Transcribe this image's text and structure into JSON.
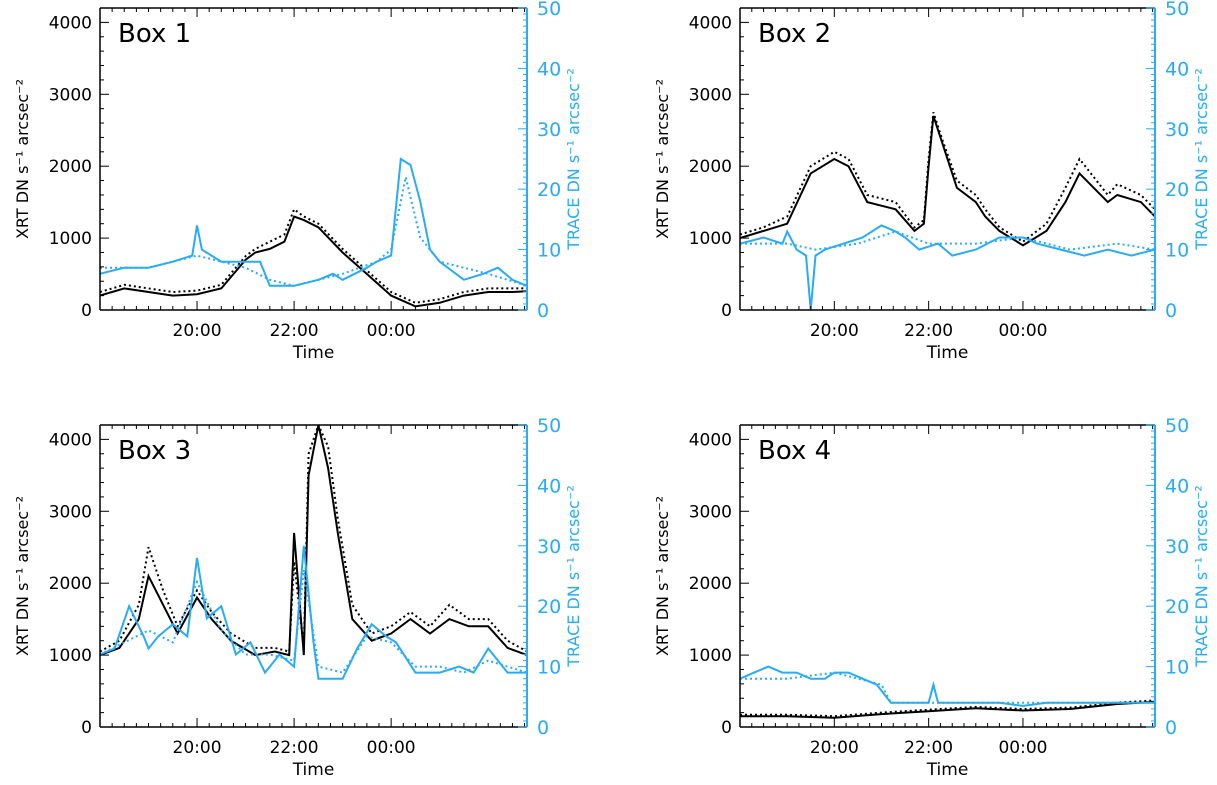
{
  "colors": {
    "xrt": "#000000",
    "trace": "#29abf5",
    "axis": "#000000",
    "background": "#ffffff"
  },
  "chart_data": [
    {
      "type": "line",
      "title": "Box 1",
      "xlabel": "Time",
      "ylabel_left": "XRT DN s⁻¹ arcsec⁻²",
      "ylabel_right": "TRACE DN s⁻¹ arcsec⁻²",
      "x_unit": "hours since 18:00 (axis shows clock time)",
      "xlim": [
        0,
        8.8
      ],
      "x_tick_values": [
        2,
        4,
        6
      ],
      "x_tick_labels": [
        "20:00",
        "22:00",
        "00:00"
      ],
      "ylim_left": [
        0,
        4200
      ],
      "ylim_right": [
        0,
        50
      ],
      "y_left_ticks": [
        0,
        1000,
        2000,
        3000,
        4000
      ],
      "y_right_ticks": [
        0,
        10,
        20,
        30,
        40,
        50
      ],
      "grid": false,
      "series": [
        {
          "name": "XRT",
          "axis": "left",
          "style": "solid",
          "color": "#000000",
          "x": [
            0,
            0.5,
            1,
            1.5,
            2,
            2.5,
            3.0,
            3.2,
            3.5,
            3.8,
            4.0,
            4.2,
            4.5,
            5.0,
            5.5,
            6.0,
            6.5,
            7.0,
            7.5,
            8.0,
            8.5,
            8.8
          ],
          "y": [
            200,
            300,
            250,
            200,
            220,
            300,
            700,
            800,
            850,
            950,
            1300,
            1250,
            1150,
            800,
            500,
            200,
            50,
            100,
            200,
            250,
            250,
            260
          ]
        },
        {
          "name": "XRT (dotted)",
          "axis": "left",
          "style": "dotted",
          "color": "#000000",
          "x": [
            0,
            0.5,
            1,
            1.5,
            2,
            2.5,
            3.0,
            3.2,
            3.5,
            3.8,
            4.0,
            4.2,
            4.5,
            5.0,
            5.5,
            6.0,
            6.5,
            7.0,
            7.5,
            8.0,
            8.5,
            8.8
          ],
          "y": [
            250,
            350,
            300,
            250,
            270,
            350,
            750,
            850,
            950,
            1050,
            1400,
            1300,
            1200,
            850,
            550,
            250,
            100,
            150,
            250,
            300,
            300,
            300
          ]
        },
        {
          "name": "TRACE",
          "axis": "right",
          "style": "solid",
          "color": "#29abf5",
          "x": [
            0,
            0.5,
            1.0,
            1.5,
            1.9,
            2.0,
            2.1,
            2.5,
            3.0,
            3.3,
            3.5,
            4.0,
            4.5,
            4.8,
            5.0,
            5.5,
            5.7,
            6.0,
            6.2,
            6.4,
            6.6,
            6.8,
            7.0,
            7.5,
            7.9,
            8.2,
            8.5,
            8.8
          ],
          "y": [
            6,
            7,
            7,
            8,
            9,
            14,
            10,
            8,
            8,
            8,
            4,
            4,
            5,
            6,
            5,
            7,
            8,
            9,
            25,
            24,
            18,
            10,
            8,
            5,
            6,
            7,
            5,
            4
          ]
        },
        {
          "name": "TRACE (dotted)",
          "axis": "right",
          "style": "dotted",
          "color": "#29abf5",
          "x": [
            0,
            1,
            2,
            2.5,
            3,
            3.5,
            4,
            5,
            5.7,
            6.0,
            6.3,
            6.6,
            7,
            8,
            8.8
          ],
          "y": [
            7,
            7,
            9,
            8,
            7,
            5,
            4,
            6,
            8,
            10,
            22,
            12,
            8,
            6,
            4
          ]
        }
      ]
    },
    {
      "type": "line",
      "title": "Box 2",
      "xlabel": "Time",
      "ylabel_left": "XRT DN s⁻¹ arcsec⁻²",
      "ylabel_right": "TRACE DN s⁻¹ arcsec⁻²",
      "x_unit": "hours since 18:00 (axis shows clock time)",
      "xlim": [
        0,
        8.8
      ],
      "x_tick_values": [
        2,
        4,
        6
      ],
      "x_tick_labels": [
        "20:00",
        "22:00",
        "00:00"
      ],
      "ylim_left": [
        0,
        4200
      ],
      "ylim_right": [
        0,
        50
      ],
      "y_left_ticks": [
        0,
        1000,
        2000,
        3000,
        4000
      ],
      "y_right_ticks": [
        0,
        10,
        20,
        30,
        40,
        50
      ],
      "grid": false,
      "series": [
        {
          "name": "XRT",
          "axis": "left",
          "style": "solid",
          "color": "#000000",
          "x": [
            0,
            0.5,
            1.0,
            1.5,
            2.0,
            2.3,
            2.7,
            3.3,
            3.7,
            3.9,
            4.0,
            4.1,
            4.3,
            4.6,
            5.0,
            5.2,
            5.5,
            6.0,
            6.5,
            6.9,
            7.2,
            7.5,
            7.8,
            8.0,
            8.5,
            8.8
          ],
          "y": [
            1000,
            1100,
            1200,
            1900,
            2100,
            2000,
            1500,
            1400,
            1100,
            1200,
            2000,
            2700,
            2300,
            1700,
            1500,
            1300,
            1100,
            900,
            1100,
            1500,
            1900,
            1700,
            1500,
            1600,
            1500,
            1300
          ]
        },
        {
          "name": "XRT (dotted)",
          "axis": "left",
          "style": "dotted",
          "color": "#000000",
          "x": [
            0,
            0.5,
            1.0,
            1.5,
            2.0,
            2.3,
            2.7,
            3.3,
            3.7,
            3.9,
            4.0,
            4.1,
            4.3,
            4.6,
            5.0,
            5.2,
            5.5,
            6.0,
            6.5,
            6.9,
            7.2,
            7.5,
            7.8,
            8.0,
            8.5,
            8.8
          ],
          "y": [
            1050,
            1150,
            1300,
            2000,
            2200,
            2100,
            1600,
            1500,
            1150,
            1250,
            2100,
            2750,
            2350,
            1800,
            1600,
            1400,
            1150,
            950,
            1200,
            1700,
            2100,
            1850,
            1600,
            1750,
            1600,
            1400
          ]
        },
        {
          "name": "TRACE",
          "axis": "right",
          "style": "solid",
          "color": "#29abf5",
          "x": [
            0,
            0.5,
            0.9,
            1.0,
            1.2,
            1.4,
            1.5,
            1.6,
            1.8,
            2.2,
            2.6,
            3.0,
            3.3,
            3.5,
            3.8,
            4.2,
            4.5,
            5.0,
            5.5,
            6.0,
            6.3,
            6.8,
            7.3,
            7.8,
            8.3,
            8.8
          ],
          "y": [
            11,
            12,
            11,
            13,
            10,
            9,
            0,
            9,
            10,
            11,
            12,
            14,
            13,
            12,
            10,
            11,
            9,
            10,
            12,
            12,
            11,
            10,
            9,
            10,
            9,
            10
          ]
        },
        {
          "name": "TRACE (dotted)",
          "axis": "right",
          "style": "dotted",
          "color": "#29abf5",
          "x": [
            0,
            1,
            1.6,
            2.5,
            3.3,
            4.0,
            5.0,
            6.0,
            7.0,
            8.0,
            8.8
          ],
          "y": [
            11,
            11,
            10,
            11,
            13,
            11,
            11,
            12,
            10,
            11,
            10
          ]
        }
      ]
    },
    {
      "type": "line",
      "title": "Box 3",
      "xlabel": "Time",
      "ylabel_left": "XRT DN s⁻¹ arcsec⁻²",
      "ylabel_right": "TRACE DN s⁻¹ arcsec⁻²",
      "x_unit": "hours since 18:00 (axis shows clock time)",
      "xlim": [
        0,
        8.8
      ],
      "x_tick_values": [
        2,
        4,
        6
      ],
      "x_tick_labels": [
        "20:00",
        "22:00",
        "00:00"
      ],
      "ylim_left": [
        0,
        4200
      ],
      "ylim_right": [
        0,
        50
      ],
      "y_left_ticks": [
        0,
        1000,
        2000,
        3000,
        4000
      ],
      "y_right_ticks": [
        0,
        10,
        20,
        30,
        40,
        50
      ],
      "grid": false,
      "series": [
        {
          "name": "XRT",
          "axis": "left",
          "style": "solid",
          "color": "#000000",
          "x": [
            0,
            0.4,
            0.8,
            1.0,
            1.3,
            1.6,
            2.0,
            2.3,
            2.7,
            3.2,
            3.6,
            3.9,
            4.0,
            4.2,
            4.3,
            4.5,
            4.7,
            4.9,
            5.2,
            5.6,
            6.0,
            6.4,
            6.8,
            7.2,
            7.6,
            8.0,
            8.4,
            8.8
          ],
          "y": [
            1000,
            1100,
            1500,
            2100,
            1700,
            1300,
            1800,
            1500,
            1200,
            1000,
            1050,
            1000,
            2700,
            1000,
            3500,
            4200,
            3600,
            2700,
            1500,
            1200,
            1300,
            1500,
            1300,
            1500,
            1400,
            1400,
            1100,
            1000
          ]
        },
        {
          "name": "XRT (dotted)",
          "axis": "left",
          "style": "dotted",
          "color": "#000000",
          "x": [
            0,
            0.4,
            0.8,
            1.0,
            1.3,
            1.6,
            2.0,
            2.3,
            2.7,
            3.2,
            3.6,
            3.9,
            4.0,
            4.2,
            4.3,
            4.5,
            4.7,
            4.9,
            5.2,
            5.6,
            6.0,
            6.4,
            6.8,
            7.2,
            7.6,
            8.0,
            8.4,
            8.8
          ],
          "y": [
            1050,
            1200,
            1700,
            2500,
            1900,
            1400,
            1900,
            1600,
            1300,
            1100,
            1100,
            1050,
            2300,
            1100,
            3800,
            4200,
            3900,
            2900,
            1700,
            1300,
            1400,
            1600,
            1400,
            1700,
            1500,
            1500,
            1200,
            1050
          ]
        },
        {
          "name": "TRACE",
          "axis": "right",
          "style": "solid",
          "color": "#29abf5",
          "x": [
            0,
            0.3,
            0.6,
            0.9,
            1.0,
            1.2,
            1.5,
            1.8,
            2.0,
            2.2,
            2.5,
            2.8,
            3.1,
            3.4,
            3.7,
            4.0,
            4.2,
            4.4,
            4.5,
            4.7,
            5.0,
            5.3,
            5.6,
            5.9,
            6.1,
            6.5,
            7.0,
            7.4,
            7.7,
            8.0,
            8.4,
            8.8
          ],
          "y": [
            12,
            13,
            20,
            15,
            13,
            15,
            17,
            15,
            28,
            18,
            20,
            12,
            14,
            9,
            12,
            10,
            30,
            14,
            8,
            8,
            8,
            13,
            17,
            15,
            14,
            9,
            9,
            10,
            9,
            13,
            9,
            9
          ]
        },
        {
          "name": "TRACE (dotted)",
          "axis": "right",
          "style": "dotted",
          "color": "#29abf5",
          "x": [
            0,
            0.5,
            1.0,
            1.5,
            2.0,
            2.5,
            3.0,
            3.5,
            4.0,
            4.2,
            4.5,
            5.0,
            5.5,
            6.0,
            6.5,
            7.0,
            7.5,
            8.0,
            8.8
          ],
          "y": [
            12,
            14,
            16,
            14,
            24,
            16,
            12,
            12,
            11,
            26,
            10,
            9,
            15,
            14,
            10,
            10,
            9,
            11,
            9
          ]
        }
      ]
    },
    {
      "type": "line",
      "title": "Box 4",
      "xlabel": "Time",
      "ylabel_left": "XRT DN s⁻¹ arcsec⁻²",
      "ylabel_right": "TRACE DN s⁻¹ arcsec⁻²",
      "x_unit": "hours since 18:00 (axis shows clock time)",
      "xlim": [
        0,
        8.8
      ],
      "x_tick_values": [
        2,
        4,
        6
      ],
      "x_tick_labels": [
        "20:00",
        "22:00",
        "00:00"
      ],
      "ylim_left": [
        0,
        4200
      ],
      "ylim_right": [
        0,
        50
      ],
      "y_left_ticks": [
        0,
        1000,
        2000,
        3000,
        4000
      ],
      "y_right_ticks": [
        0,
        10,
        20,
        30,
        40,
        50
      ],
      "grid": false,
      "series": [
        {
          "name": "XRT",
          "axis": "left",
          "style": "solid",
          "color": "#000000",
          "x": [
            0,
            1,
            2,
            3,
            4,
            5,
            6,
            7,
            8,
            8.8
          ],
          "y": [
            150,
            150,
            130,
            180,
            220,
            260,
            230,
            250,
            320,
            350
          ]
        },
        {
          "name": "XRT (dotted)",
          "axis": "left",
          "style": "dotted",
          "color": "#000000",
          "x": [
            0,
            1,
            2,
            3,
            4,
            5,
            6,
            7,
            8,
            8.8
          ],
          "y": [
            170,
            170,
            150,
            200,
            240,
            280,
            250,
            270,
            340,
            370
          ]
        },
        {
          "name": "TRACE",
          "axis": "right",
          "style": "solid",
          "color": "#29abf5",
          "x": [
            0,
            0.3,
            0.6,
            0.9,
            1.2,
            1.5,
            1.8,
            2.0,
            2.3,
            2.6,
            2.9,
            3.2,
            3.6,
            4.0,
            4.1,
            4.2,
            4.5,
            5.0,
            5.5,
            6.0,
            6.5,
            7.0,
            7.5,
            8.0,
            8.5,
            8.8
          ],
          "y": [
            8,
            9,
            10,
            9,
            9,
            8,
            8,
            9,
            9,
            8,
            7,
            4,
            4,
            4,
            7,
            4,
            4,
            4,
            4,
            3.5,
            4,
            4,
            4,
            4,
            4,
            4
          ]
        },
        {
          "name": "TRACE (dotted)",
          "axis": "right",
          "style": "dotted",
          "color": "#29abf5",
          "x": [
            0,
            1,
            2,
            2.5,
            3,
            3.2,
            4,
            5,
            6,
            7,
            8,
            8.8
          ],
          "y": [
            8,
            8,
            9,
            8,
            7,
            4,
            4,
            4,
            4,
            4,
            4,
            4
          ]
        }
      ]
    }
  ]
}
